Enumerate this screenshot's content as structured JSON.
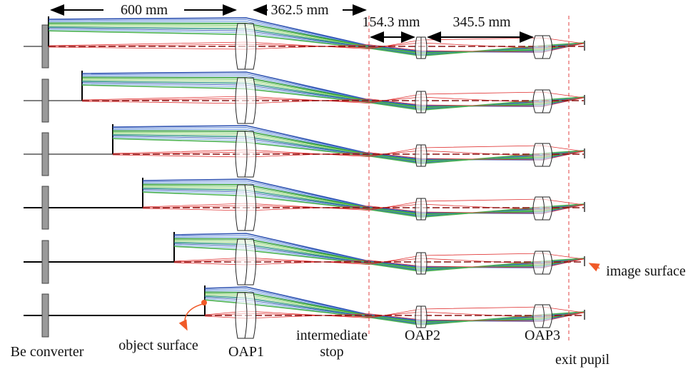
{
  "dimensions": [
    "600 mm",
    "362.5 mm",
    "154.3 mm",
    "345.5 mm"
  ],
  "labels": {
    "be_converter": "Be converter",
    "object_surface": "object surface",
    "oap1": "OAP1",
    "intermediate_stop": [
      "intermediate",
      "stop"
    ],
    "oap2": "OAP2",
    "oap3": "OAP3",
    "exit_pupil": "exit pupil",
    "image_surface": "image surface"
  }
}
